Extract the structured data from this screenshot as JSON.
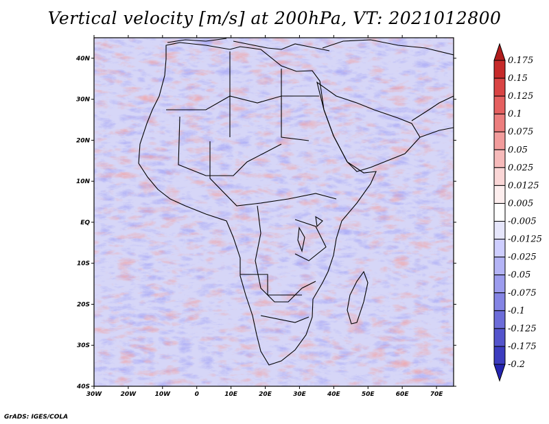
{
  "title": "Vertical velocity [m/s] at 200hPa, VT: 2021012800",
  "credit": "GrADS: IGES/COLA",
  "map": {
    "x_labels": [
      "30W",
      "20W",
      "10W",
      "0",
      "10E",
      "20E",
      "30E",
      "40E",
      "50E",
      "60E",
      "70E"
    ],
    "y_labels": [
      "40N",
      "30N",
      "20N",
      "10N",
      "EQ",
      "10S",
      "20S",
      "30S",
      "40S"
    ],
    "lon_range": [
      -30,
      75
    ],
    "lat_range": [
      -40,
      45
    ]
  },
  "colorbar": {
    "labels": [
      "0.175",
      "0.15",
      "0.125",
      "0.1",
      "0.075",
      "0.05",
      "0.025",
      "0.0125",
      "0.005",
      "-0.005",
      "-0.0125",
      "-0.025",
      "-0.05",
      "-0.075",
      "-0.1",
      "-0.125",
      "-0.175",
      "-0.2"
    ],
    "colors": [
      "#b01c1c",
      "#c62a2a",
      "#d94444",
      "#e56060",
      "#ec7e7e",
      "#f29c9c",
      "#f6baba",
      "#fad6d6",
      "#fdeeee",
      "#ffffff",
      "#e6e6fb",
      "#ceceff",
      "#b4b4f6",
      "#9c9cee",
      "#8484e4",
      "#6c6cd9",
      "#5454cc",
      "#3c3cbf",
      "#2424b0"
    ]
  }
}
